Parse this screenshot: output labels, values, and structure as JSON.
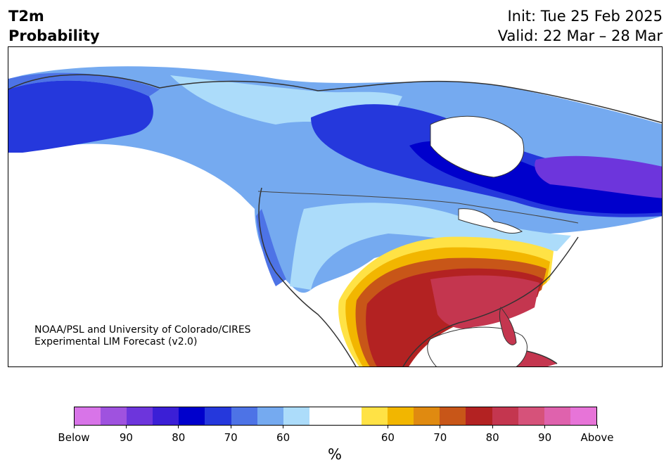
{
  "header": {
    "title_line1": "T2m",
    "title_line2": "Probability",
    "init_text": "Init: Tue 25 Feb 2025",
    "valid_text": "Valid: 22 Mar – 28 Mar"
  },
  "credit": {
    "line1": "NOAA/PSL and University of Colorado/CIRES",
    "line2": "Experimental LIM Forecast (v2.0)"
  },
  "colorbar": {
    "unit": "%",
    "colors": [
      "#d874e8",
      "#9f52df",
      "#6d35dc",
      "#3b1fd6",
      "#0000cc",
      "#2538dc",
      "#4d73e6",
      "#75aaf0",
      "#acdcfa",
      "#ffffff",
      "#ffffff",
      "#ffe245",
      "#f2b600",
      "#e08a10",
      "#c85618",
      "#b32222",
      "#c4364f",
      "#d6527a",
      "#df62ad",
      "#e774d8"
    ],
    "labels": [
      "Below",
      "90",
      "80",
      "70",
      "60",
      "60",
      "70",
      "80",
      "90",
      "Above"
    ]
  },
  "legend_colors": {
    "below_strong": "#0000cc",
    "below_weak": "#acdcfa",
    "above_weak": "#ffe245",
    "above_strong": "#b32222"
  }
}
